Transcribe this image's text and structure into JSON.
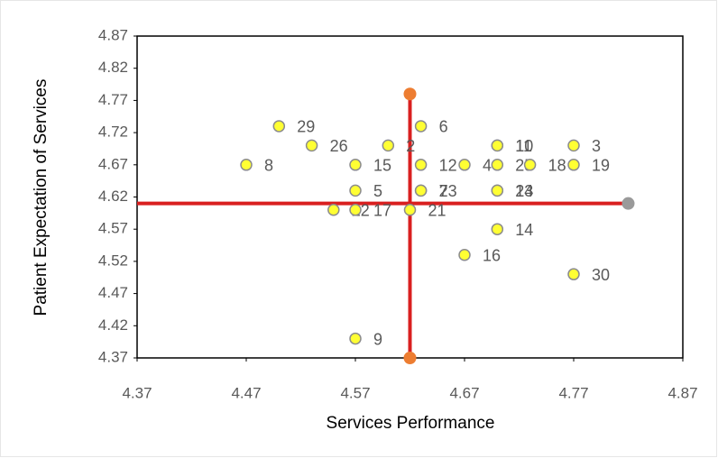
{
  "chart_data": {
    "type": "scatter",
    "x_label": "Services Performance",
    "y_label": "Patient Expectation of Services",
    "xlim": [
      4.37,
      4.87
    ],
    "xticks": [
      4.37,
      4.47,
      4.57,
      4.67,
      4.77,
      4.87
    ],
    "ylim": [
      4.37,
      4.87
    ],
    "yticks": [
      4.37,
      4.42,
      4.47,
      4.52,
      4.57,
      4.62,
      4.67,
      4.72,
      4.77,
      4.82,
      4.87
    ],
    "points": {
      "color": "#ffff33",
      "edge_color": "#8c8c8c",
      "labels": [
        "29",
        "26",
        "2",
        "6",
        "8",
        "15",
        "12",
        "4",
        "10",
        "11",
        "3",
        "25",
        "18",
        "19",
        "5",
        "7",
        "23",
        "13",
        "24",
        "22",
        "17",
        "21",
        "14",
        "16",
        "30",
        "9"
      ],
      "x": [
        4.5,
        4.53,
        4.6,
        4.63,
        4.47,
        4.57,
        4.63,
        4.67,
        4.7,
        4.7,
        4.77,
        4.7,
        4.73,
        4.77,
        4.57,
        4.63,
        4.63,
        4.7,
        4.7,
        4.55,
        4.57,
        4.62,
        4.7,
        4.67,
        4.77,
        4.57
      ],
      "y": [
        4.73,
        4.7,
        4.7,
        4.73,
        4.67,
        4.67,
        4.67,
        4.67,
        4.7,
        4.7,
        4.7,
        4.67,
        4.67,
        4.67,
        4.63,
        4.63,
        4.63,
        4.63,
        4.63,
        4.6,
        4.6,
        4.6,
        4.57,
        4.53,
        4.5,
        4.4
      ]
    },
    "lines": [
      {
        "color": "#d91f1f",
        "x": [
          4.62,
          4.62
        ],
        "y": [
          4.37,
          4.78
        ],
        "end_colors": [
          "#ed7d31",
          "#ed7d31"
        ]
      },
      {
        "color": "#d91f1f",
        "x": [
          4.37,
          4.82
        ],
        "y": [
          4.61,
          4.61
        ],
        "end_colors": [
          null,
          "#9a9a9a"
        ]
      }
    ]
  }
}
